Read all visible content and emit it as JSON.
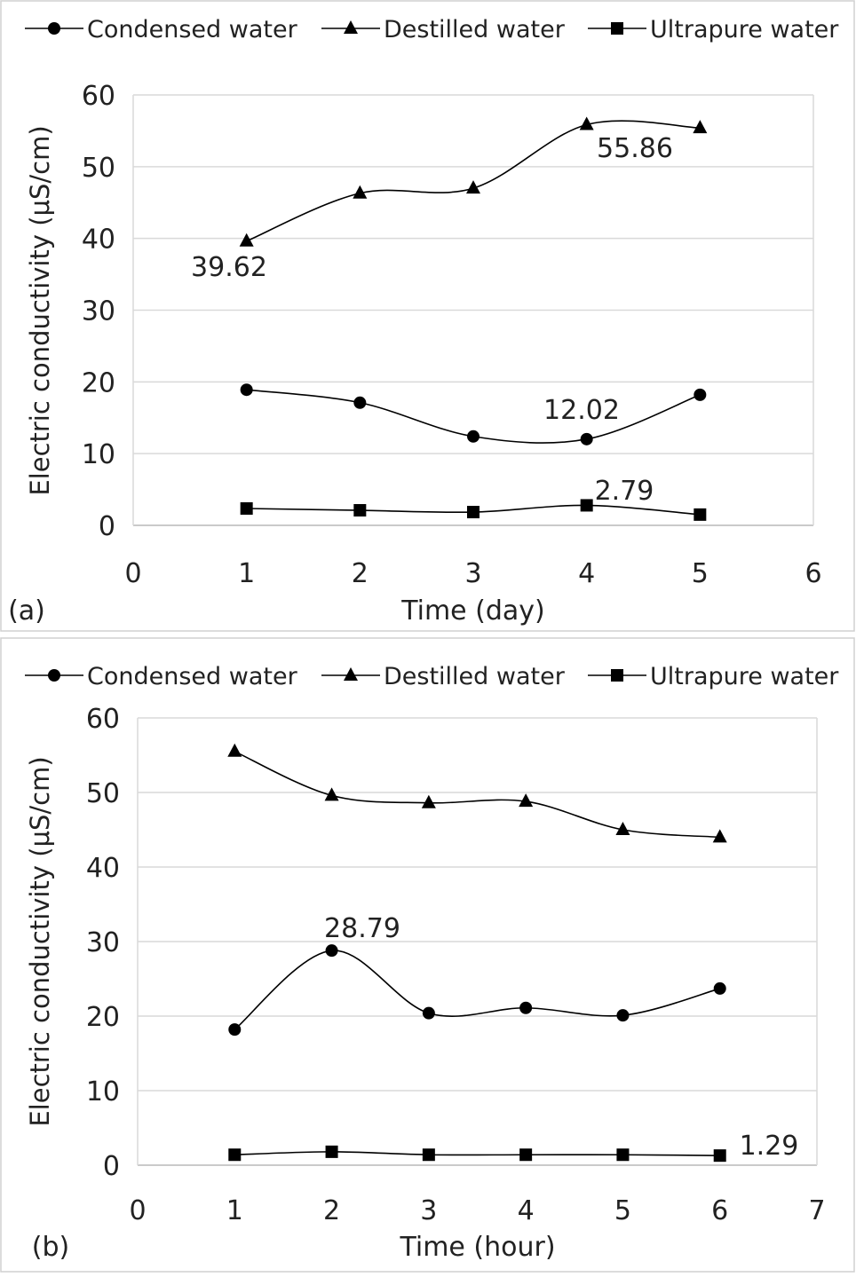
{
  "chart_data": [
    {
      "type": "line",
      "panel_label": "(a)",
      "xlabel": "Time (day)",
      "ylabel": "Electric conductivity (μS/cm)",
      "xlim": [
        0,
        6
      ],
      "ylim": [
        0,
        60
      ],
      "xticks": [
        0,
        1,
        2,
        3,
        4,
        5,
        6
      ],
      "yticks": [
        0,
        10,
        20,
        30,
        40,
        50,
        60
      ],
      "grid": "horizontal",
      "legend": "top",
      "smooth": true,
      "x": [
        1,
        2,
        3,
        4,
        5
      ],
      "series": [
        {
          "name": "Condensed water",
          "marker": "circle",
          "values": [
            18.9,
            17.1,
            12.4,
            12.02,
            18.2
          ]
        },
        {
          "name": "Destilled water",
          "marker": "triangle",
          "values": [
            39.62,
            46.3,
            47.0,
            55.86,
            55.4
          ]
        },
        {
          "name": "Ultrapure water",
          "marker": "square",
          "values": [
            2.35,
            2.1,
            1.85,
            2.79,
            1.5
          ]
        }
      ],
      "annotations": [
        {
          "text": "39.62",
          "series": 1,
          "x": 1
        },
        {
          "text": "55.86",
          "series": 1,
          "x": 4
        },
        {
          "text": "12.02",
          "series": 0,
          "x": 4
        },
        {
          "text": "2.79",
          "series": 2,
          "x": 4
        }
      ]
    },
    {
      "type": "line",
      "panel_label": "(b)",
      "xlabel": "Time (hour)",
      "ylabel": "Electric conductivity (μS/cm)",
      "xlim": [
        0,
        7
      ],
      "ylim": [
        0,
        60
      ],
      "xticks": [
        0,
        1,
        2,
        3,
        4,
        5,
        6,
        7
      ],
      "yticks": [
        0,
        10,
        20,
        30,
        40,
        50,
        60
      ],
      "grid": "horizontal",
      "legend": "top",
      "smooth": true,
      "x": [
        1,
        2,
        3,
        4,
        5,
        6
      ],
      "series": [
        {
          "name": "Condensed water",
          "marker": "circle",
          "values": [
            18.2,
            28.79,
            20.4,
            21.1,
            20.1,
            23.7
          ]
        },
        {
          "name": "Destilled water",
          "marker": "triangle",
          "values": [
            55.5,
            49.6,
            48.6,
            48.8,
            45.0,
            44.0
          ]
        },
        {
          "name": "Ultrapure water",
          "marker": "square",
          "values": [
            1.4,
            1.8,
            1.4,
            1.4,
            1.4,
            1.29
          ]
        }
      ],
      "annotations": [
        {
          "text": "28.79",
          "series": 0,
          "x": 2
        },
        {
          "text": "1.29",
          "series": 2,
          "x": 6
        }
      ]
    }
  ]
}
